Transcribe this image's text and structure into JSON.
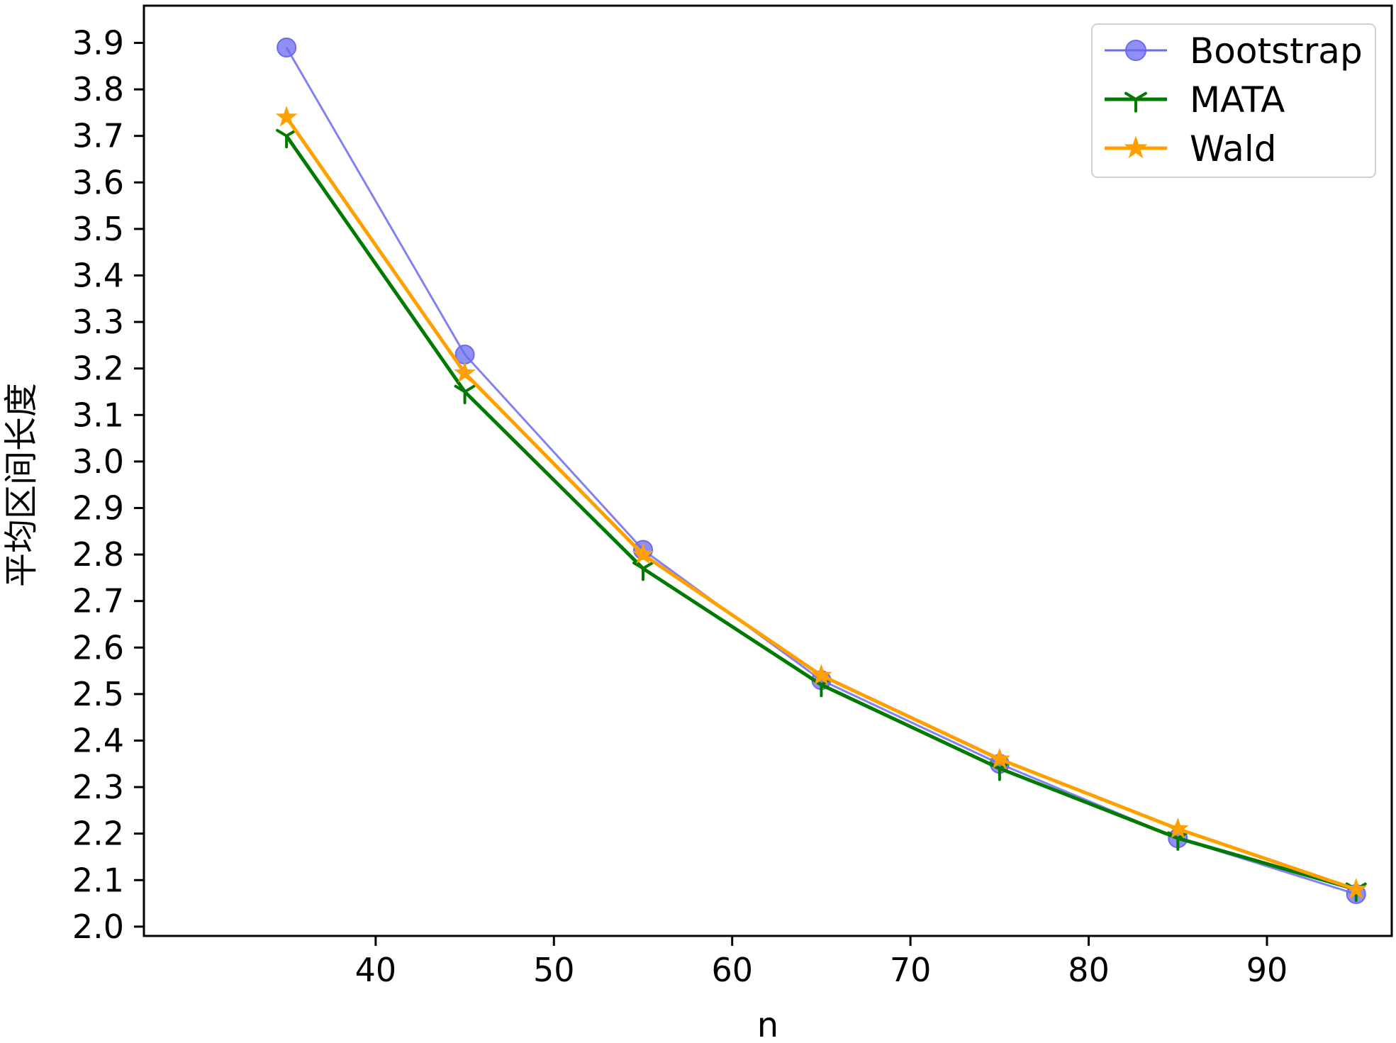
{
  "chart_data": {
    "type": "line",
    "title": "",
    "xlabel": "n",
    "ylabel": "平均区间长度",
    "x": [
      35,
      45,
      55,
      65,
      75,
      85,
      95
    ],
    "xticks": [
      "40",
      "50",
      "60",
      "70",
      "80",
      "90"
    ],
    "yticks": [
      "2.0",
      "2.1",
      "2.2",
      "2.3",
      "2.4",
      "2.5",
      "2.6",
      "2.7",
      "2.8",
      "2.9",
      "3.0",
      "3.1",
      "3.2",
      "3.3",
      "3.4",
      "3.5",
      "3.6",
      "3.7",
      "3.8",
      "3.9"
    ],
    "xlim": [
      27,
      97
    ],
    "ylim": [
      1.98,
      3.98
    ],
    "grid": false,
    "legend_position": "top-right",
    "series": [
      {
        "name": "Bootstrap",
        "color": "#6b6bf0",
        "marker": "circle",
        "values": [
          3.89,
          3.23,
          2.81,
          2.53,
          2.35,
          2.19,
          2.07
        ]
      },
      {
        "name": "MATA",
        "color": "#007a00",
        "marker": "tri_down",
        "values": [
          3.7,
          3.15,
          2.77,
          2.52,
          2.34,
          2.19,
          2.08
        ]
      },
      {
        "name": "Wald",
        "color": "#ffa000",
        "marker": "star",
        "values": [
          3.74,
          3.19,
          2.8,
          2.54,
          2.36,
          2.21,
          2.08
        ]
      }
    ]
  }
}
